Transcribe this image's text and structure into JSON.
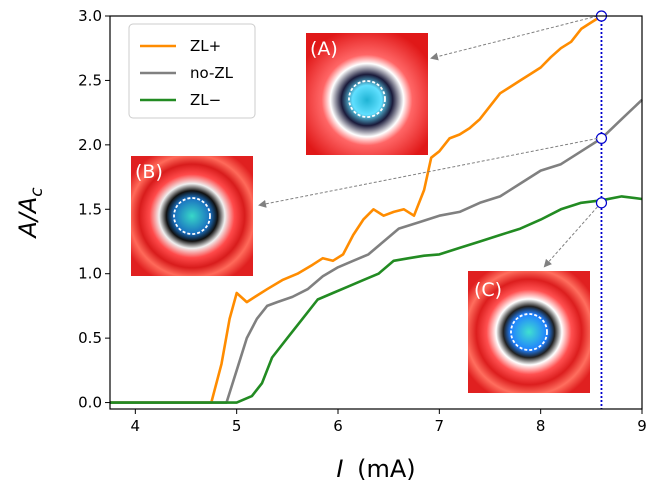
{
  "chart_data": {
    "type": "line",
    "xlabel": "I",
    "xlabel_unit": "(mA)",
    "ylabel_main": "A/A",
    "ylabel_sub": "c",
    "xlim": [
      3.75,
      9.0
    ],
    "ylim": [
      -0.05,
      3.0
    ],
    "x_ticks": [
      "4",
      "5",
      "6",
      "7",
      "8",
      "9"
    ],
    "y_ticks": [
      "0.0",
      "0.5",
      "1.0",
      "1.5",
      "2.0",
      "2.5",
      "3.0"
    ],
    "legend_position": "upper-left",
    "series": [
      {
        "name": "ZL+",
        "color": "#ff8c00",
        "x": [
          3.75,
          4.5,
          4.75,
          4.85,
          4.93,
          5.0,
          5.1,
          5.2,
          5.3,
          5.45,
          5.6,
          5.75,
          5.85,
          5.95,
          6.05,
          6.15,
          6.25,
          6.35,
          6.45,
          6.55,
          6.65,
          6.75,
          6.85,
          6.92,
          7.0,
          7.1,
          7.2,
          7.3,
          7.4,
          7.5,
          7.6,
          7.7,
          7.8,
          7.9,
          8.0,
          8.1,
          8.2,
          8.3,
          8.4,
          8.5,
          8.6
        ],
        "y": [
          0.0,
          0.0,
          0.0,
          0.3,
          0.65,
          0.85,
          0.78,
          0.83,
          0.88,
          0.95,
          1.0,
          1.07,
          1.12,
          1.1,
          1.15,
          1.3,
          1.42,
          1.5,
          1.45,
          1.48,
          1.5,
          1.45,
          1.65,
          1.9,
          1.95,
          2.05,
          2.08,
          2.13,
          2.2,
          2.3,
          2.4,
          2.45,
          2.5,
          2.55,
          2.6,
          2.68,
          2.75,
          2.8,
          2.9,
          2.95,
          3.0
        ]
      },
      {
        "name": "no-ZL",
        "color": "#808080",
        "x": [
          3.75,
          4.7,
          4.9,
          5.0,
          5.1,
          5.2,
          5.3,
          5.4,
          5.55,
          5.7,
          5.85,
          6.0,
          6.15,
          6.3,
          6.45,
          6.6,
          6.8,
          7.0,
          7.2,
          7.4,
          7.6,
          7.8,
          8.0,
          8.2,
          8.4,
          8.6,
          8.8,
          9.0
        ],
        "y": [
          0.0,
          0.0,
          0.0,
          0.25,
          0.5,
          0.65,
          0.75,
          0.78,
          0.82,
          0.88,
          0.98,
          1.05,
          1.1,
          1.15,
          1.25,
          1.35,
          1.4,
          1.45,
          1.48,
          1.55,
          1.6,
          1.7,
          1.8,
          1.85,
          1.95,
          2.05,
          2.2,
          2.35
        ]
      },
      {
        "name": "ZL−",
        "color": "#228b22",
        "x": [
          3.75,
          5.0,
          5.15,
          5.25,
          5.35,
          5.5,
          5.65,
          5.8,
          5.95,
          6.1,
          6.25,
          6.4,
          6.55,
          6.7,
          6.85,
          7.0,
          7.2,
          7.4,
          7.6,
          7.8,
          8.0,
          8.2,
          8.4,
          8.6,
          8.8,
          9.0
        ],
        "y": [
          0.0,
          0.0,
          0.05,
          0.15,
          0.35,
          0.5,
          0.65,
          0.8,
          0.85,
          0.9,
          0.95,
          1.0,
          1.1,
          1.12,
          1.14,
          1.15,
          1.2,
          1.25,
          1.3,
          1.35,
          1.42,
          1.5,
          1.55,
          1.57,
          1.6,
          1.58
        ]
      }
    ],
    "marker_line_x": 8.6,
    "marker_line_color": "#0000cd",
    "insets": [
      {
        "label": "(A)",
        "target_x": 8.6,
        "target_y": 3.0
      },
      {
        "label": "(B)",
        "target_x": 8.6,
        "target_y": 2.05
      },
      {
        "label": "(C)",
        "target_x": 8.6,
        "target_y": 1.55
      }
    ]
  }
}
